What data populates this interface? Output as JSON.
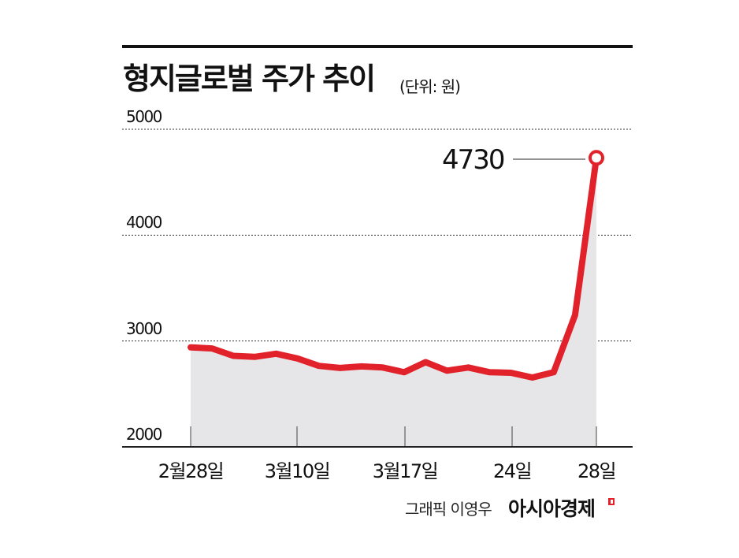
{
  "header": {
    "title": "형지글로벌 주가 추이",
    "unit": "(단위: 원)"
  },
  "callout": {
    "label": "4730"
  },
  "credit": {
    "graphic": "그래픽 이영우",
    "brand": "아시아경제"
  },
  "colors": {
    "line": "#e2222a",
    "fill": "#e6e6e8",
    "grid": "#333333",
    "axis": "#222222"
  },
  "chart_data": {
    "type": "area",
    "title": "형지글로벌 주가 추이",
    "subtitle": "(단위: 원)",
    "xlabel": "",
    "ylabel": "원",
    "ylim": [
      2000,
      5000
    ],
    "yticks": [
      2000,
      3000,
      4000,
      5000
    ],
    "ytick_labels": [
      "2000",
      "3000",
      "4000",
      "5000"
    ],
    "grid": "horizontal dashed",
    "xtick_labels": [
      "2월28일",
      "3월10일",
      "3월17일",
      "24일",
      "28일"
    ],
    "xtick_indices": [
      0,
      5,
      10,
      15,
      20
    ],
    "series": [
      {
        "name": "형지글로벌 주가",
        "values": [
          2940,
          2930,
          2860,
          2850,
          2880,
          2835,
          2765,
          2745,
          2760,
          2750,
          2705,
          2800,
          2720,
          2750,
          2705,
          2700,
          2655,
          2705,
          3245,
          4730
        ]
      }
    ],
    "x": [
      0,
      1,
      2,
      3,
      4,
      5,
      6,
      7,
      8,
      9,
      10,
      11,
      12,
      13,
      14,
      15,
      16,
      17,
      18,
      19
    ],
    "annotations": [
      {
        "text": "4730",
        "point_index": 19,
        "marker": "open circle"
      }
    ]
  }
}
